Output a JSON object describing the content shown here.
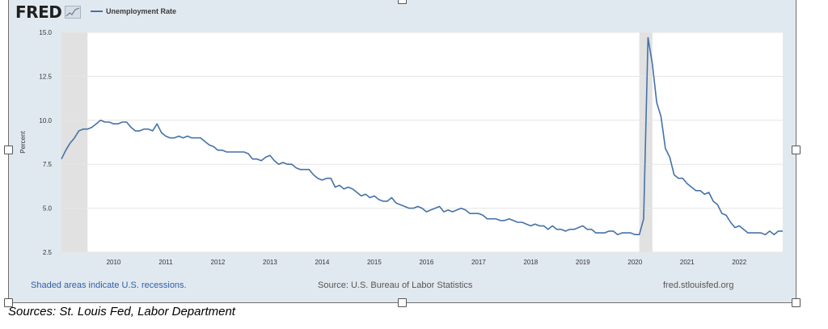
{
  "brand": {
    "logo_text": "FRED"
  },
  "legend": {
    "label": "Unemployment Rate",
    "color": "#4572a7"
  },
  "footer": {
    "recession_note": "Shaded areas indicate U.S. recessions.",
    "source": "Source: U.S. Bureau of Labor Statistics",
    "site": "fred.stlouisfed.org"
  },
  "caption": "Sources: St. Louis Fed, Labor Department",
  "chart_data": {
    "type": "line",
    "title": "",
    "xlabel": "",
    "ylabel": "Percent",
    "ylim": [
      2.5,
      15.0
    ],
    "yticks": [
      "2.5",
      "5.0",
      "7.5",
      "10.0",
      "12.5",
      "15.0"
    ],
    "xlim": [
      "2009-01",
      "2022-11"
    ],
    "xticks": [
      "2010",
      "2011",
      "2012",
      "2013",
      "2014",
      "2015",
      "2016",
      "2017",
      "2018",
      "2019",
      "2020",
      "2021",
      "2022"
    ],
    "grid": "horizontal",
    "recessions": [
      {
        "start": "2009-01",
        "end": "2009-06"
      },
      {
        "start": "2020-02",
        "end": "2020-04"
      }
    ],
    "series": [
      {
        "name": "Unemployment Rate",
        "color": "#4572a7",
        "x": [
          "2009-01",
          "2009-02",
          "2009-03",
          "2009-04",
          "2009-05",
          "2009-06",
          "2009-07",
          "2009-08",
          "2009-09",
          "2009-10",
          "2009-11",
          "2009-12",
          "2010-01",
          "2010-02",
          "2010-03",
          "2010-04",
          "2010-05",
          "2010-06",
          "2010-07",
          "2010-08",
          "2010-09",
          "2010-10",
          "2010-11",
          "2010-12",
          "2011-01",
          "2011-02",
          "2011-03",
          "2011-04",
          "2011-05",
          "2011-06",
          "2011-07",
          "2011-08",
          "2011-09",
          "2011-10",
          "2011-11",
          "2011-12",
          "2012-01",
          "2012-02",
          "2012-03",
          "2012-04",
          "2012-05",
          "2012-06",
          "2012-07",
          "2012-08",
          "2012-09",
          "2012-10",
          "2012-11",
          "2012-12",
          "2013-01",
          "2013-02",
          "2013-03",
          "2013-04",
          "2013-05",
          "2013-06",
          "2013-07",
          "2013-08",
          "2013-09",
          "2013-10",
          "2013-11",
          "2013-12",
          "2014-01",
          "2014-02",
          "2014-03",
          "2014-04",
          "2014-05",
          "2014-06",
          "2014-07",
          "2014-08",
          "2014-09",
          "2014-10",
          "2014-11",
          "2014-12",
          "2015-01",
          "2015-02",
          "2015-03",
          "2015-04",
          "2015-05",
          "2015-06",
          "2015-07",
          "2015-08",
          "2015-09",
          "2015-10",
          "2015-11",
          "2015-12",
          "2016-01",
          "2016-02",
          "2016-03",
          "2016-04",
          "2016-05",
          "2016-06",
          "2016-07",
          "2016-08",
          "2016-09",
          "2016-10",
          "2016-11",
          "2016-12",
          "2017-01",
          "2017-02",
          "2017-03",
          "2017-04",
          "2017-05",
          "2017-06",
          "2017-07",
          "2017-08",
          "2017-09",
          "2017-10",
          "2017-11",
          "2017-12",
          "2018-01",
          "2018-02",
          "2018-03",
          "2018-04",
          "2018-05",
          "2018-06",
          "2018-07",
          "2018-08",
          "2018-09",
          "2018-10",
          "2018-11",
          "2018-12",
          "2019-01",
          "2019-02",
          "2019-03",
          "2019-04",
          "2019-05",
          "2019-06",
          "2019-07",
          "2019-08",
          "2019-09",
          "2019-10",
          "2019-11",
          "2019-12",
          "2020-01",
          "2020-02",
          "2020-03",
          "2020-04",
          "2020-05",
          "2020-06",
          "2020-07",
          "2020-08",
          "2020-09",
          "2020-10",
          "2020-11",
          "2020-12",
          "2021-01",
          "2021-02",
          "2021-03",
          "2021-04",
          "2021-05",
          "2021-06",
          "2021-07",
          "2021-08",
          "2021-09",
          "2021-10",
          "2021-11",
          "2021-12",
          "2022-01",
          "2022-02",
          "2022-03",
          "2022-04",
          "2022-05",
          "2022-06",
          "2022-07",
          "2022-08",
          "2022-09",
          "2022-10",
          "2022-11"
        ],
        "values": [
          7.8,
          8.3,
          8.7,
          9.0,
          9.4,
          9.5,
          9.5,
          9.6,
          9.8,
          10.0,
          9.9,
          9.9,
          9.8,
          9.8,
          9.9,
          9.9,
          9.6,
          9.4,
          9.4,
          9.5,
          9.5,
          9.4,
          9.8,
          9.3,
          9.1,
          9.0,
          9.0,
          9.1,
          9.0,
          9.1,
          9.0,
          9.0,
          9.0,
          8.8,
          8.6,
          8.5,
          8.3,
          8.3,
          8.2,
          8.2,
          8.2,
          8.2,
          8.2,
          8.1,
          7.8,
          7.8,
          7.7,
          7.9,
          8.0,
          7.7,
          7.5,
          7.6,
          7.5,
          7.5,
          7.3,
          7.2,
          7.2,
          7.2,
          6.9,
          6.7,
          6.6,
          6.7,
          6.7,
          6.2,
          6.3,
          6.1,
          6.2,
          6.1,
          5.9,
          5.7,
          5.8,
          5.6,
          5.7,
          5.5,
          5.4,
          5.4,
          5.6,
          5.3,
          5.2,
          5.1,
          5.0,
          5.0,
          5.1,
          5.0,
          4.8,
          4.9,
          5.0,
          5.1,
          4.8,
          4.9,
          4.8,
          4.9,
          5.0,
          4.9,
          4.7,
          4.7,
          4.7,
          4.6,
          4.4,
          4.4,
          4.4,
          4.3,
          4.3,
          4.4,
          4.3,
          4.2,
          4.2,
          4.1,
          4.0,
          4.1,
          4.0,
          4.0,
          3.8,
          4.0,
          3.8,
          3.8,
          3.7,
          3.8,
          3.8,
          3.9,
          4.0,
          3.8,
          3.8,
          3.6,
          3.6,
          3.6,
          3.7,
          3.7,
          3.5,
          3.6,
          3.6,
          3.6,
          3.5,
          3.5,
          4.4,
          14.7,
          13.2,
          11.0,
          10.2,
          8.4,
          7.9,
          6.9,
          6.7,
          6.7,
          6.4,
          6.2,
          6.0,
          6.0,
          5.8,
          5.9,
          5.4,
          5.2,
          4.7,
          4.6,
          4.2,
          3.9,
          4.0,
          3.8,
          3.6,
          3.6,
          3.6,
          3.6,
          3.5,
          3.7,
          3.5,
          3.7,
          3.7
        ]
      }
    ]
  }
}
